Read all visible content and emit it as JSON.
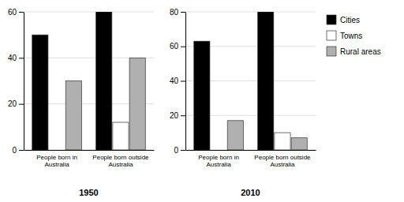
{
  "chart_data": [
    {
      "type": "bar",
      "xlabel": "1950",
      "categories": [
        "People born in Australia",
        "People born outside Australia"
      ],
      "series": [
        {
          "name": "Cities",
          "color": "#000000",
          "values": [
            50,
            60
          ]
        },
        {
          "name": "Towns",
          "color": "#ffffff",
          "values": [
            0,
            12
          ]
        },
        {
          "name": "Rural areas",
          "color": "#b0b0b0",
          "values": [
            30,
            40
          ]
        }
      ],
      "ylim": [
        0,
        60
      ],
      "yticks": [
        0,
        20,
        40,
        60
      ],
      "grid": true,
      "legend": "right"
    },
    {
      "type": "bar",
      "xlabel": "2010",
      "categories": [
        "People born in Australia",
        "People born outside Australia"
      ],
      "series": [
        {
          "name": "Cities",
          "color": "#000000",
          "values": [
            63,
            80
          ]
        },
        {
          "name": "Towns",
          "color": "#ffffff",
          "values": [
            0,
            10
          ]
        },
        {
          "name": "Rural areas",
          "color": "#b0b0b0",
          "values": [
            17,
            7
          ]
        }
      ],
      "ylim": [
        0,
        80
      ],
      "yticks": [
        0,
        20,
        40,
        60,
        80
      ],
      "grid": true
    }
  ]
}
